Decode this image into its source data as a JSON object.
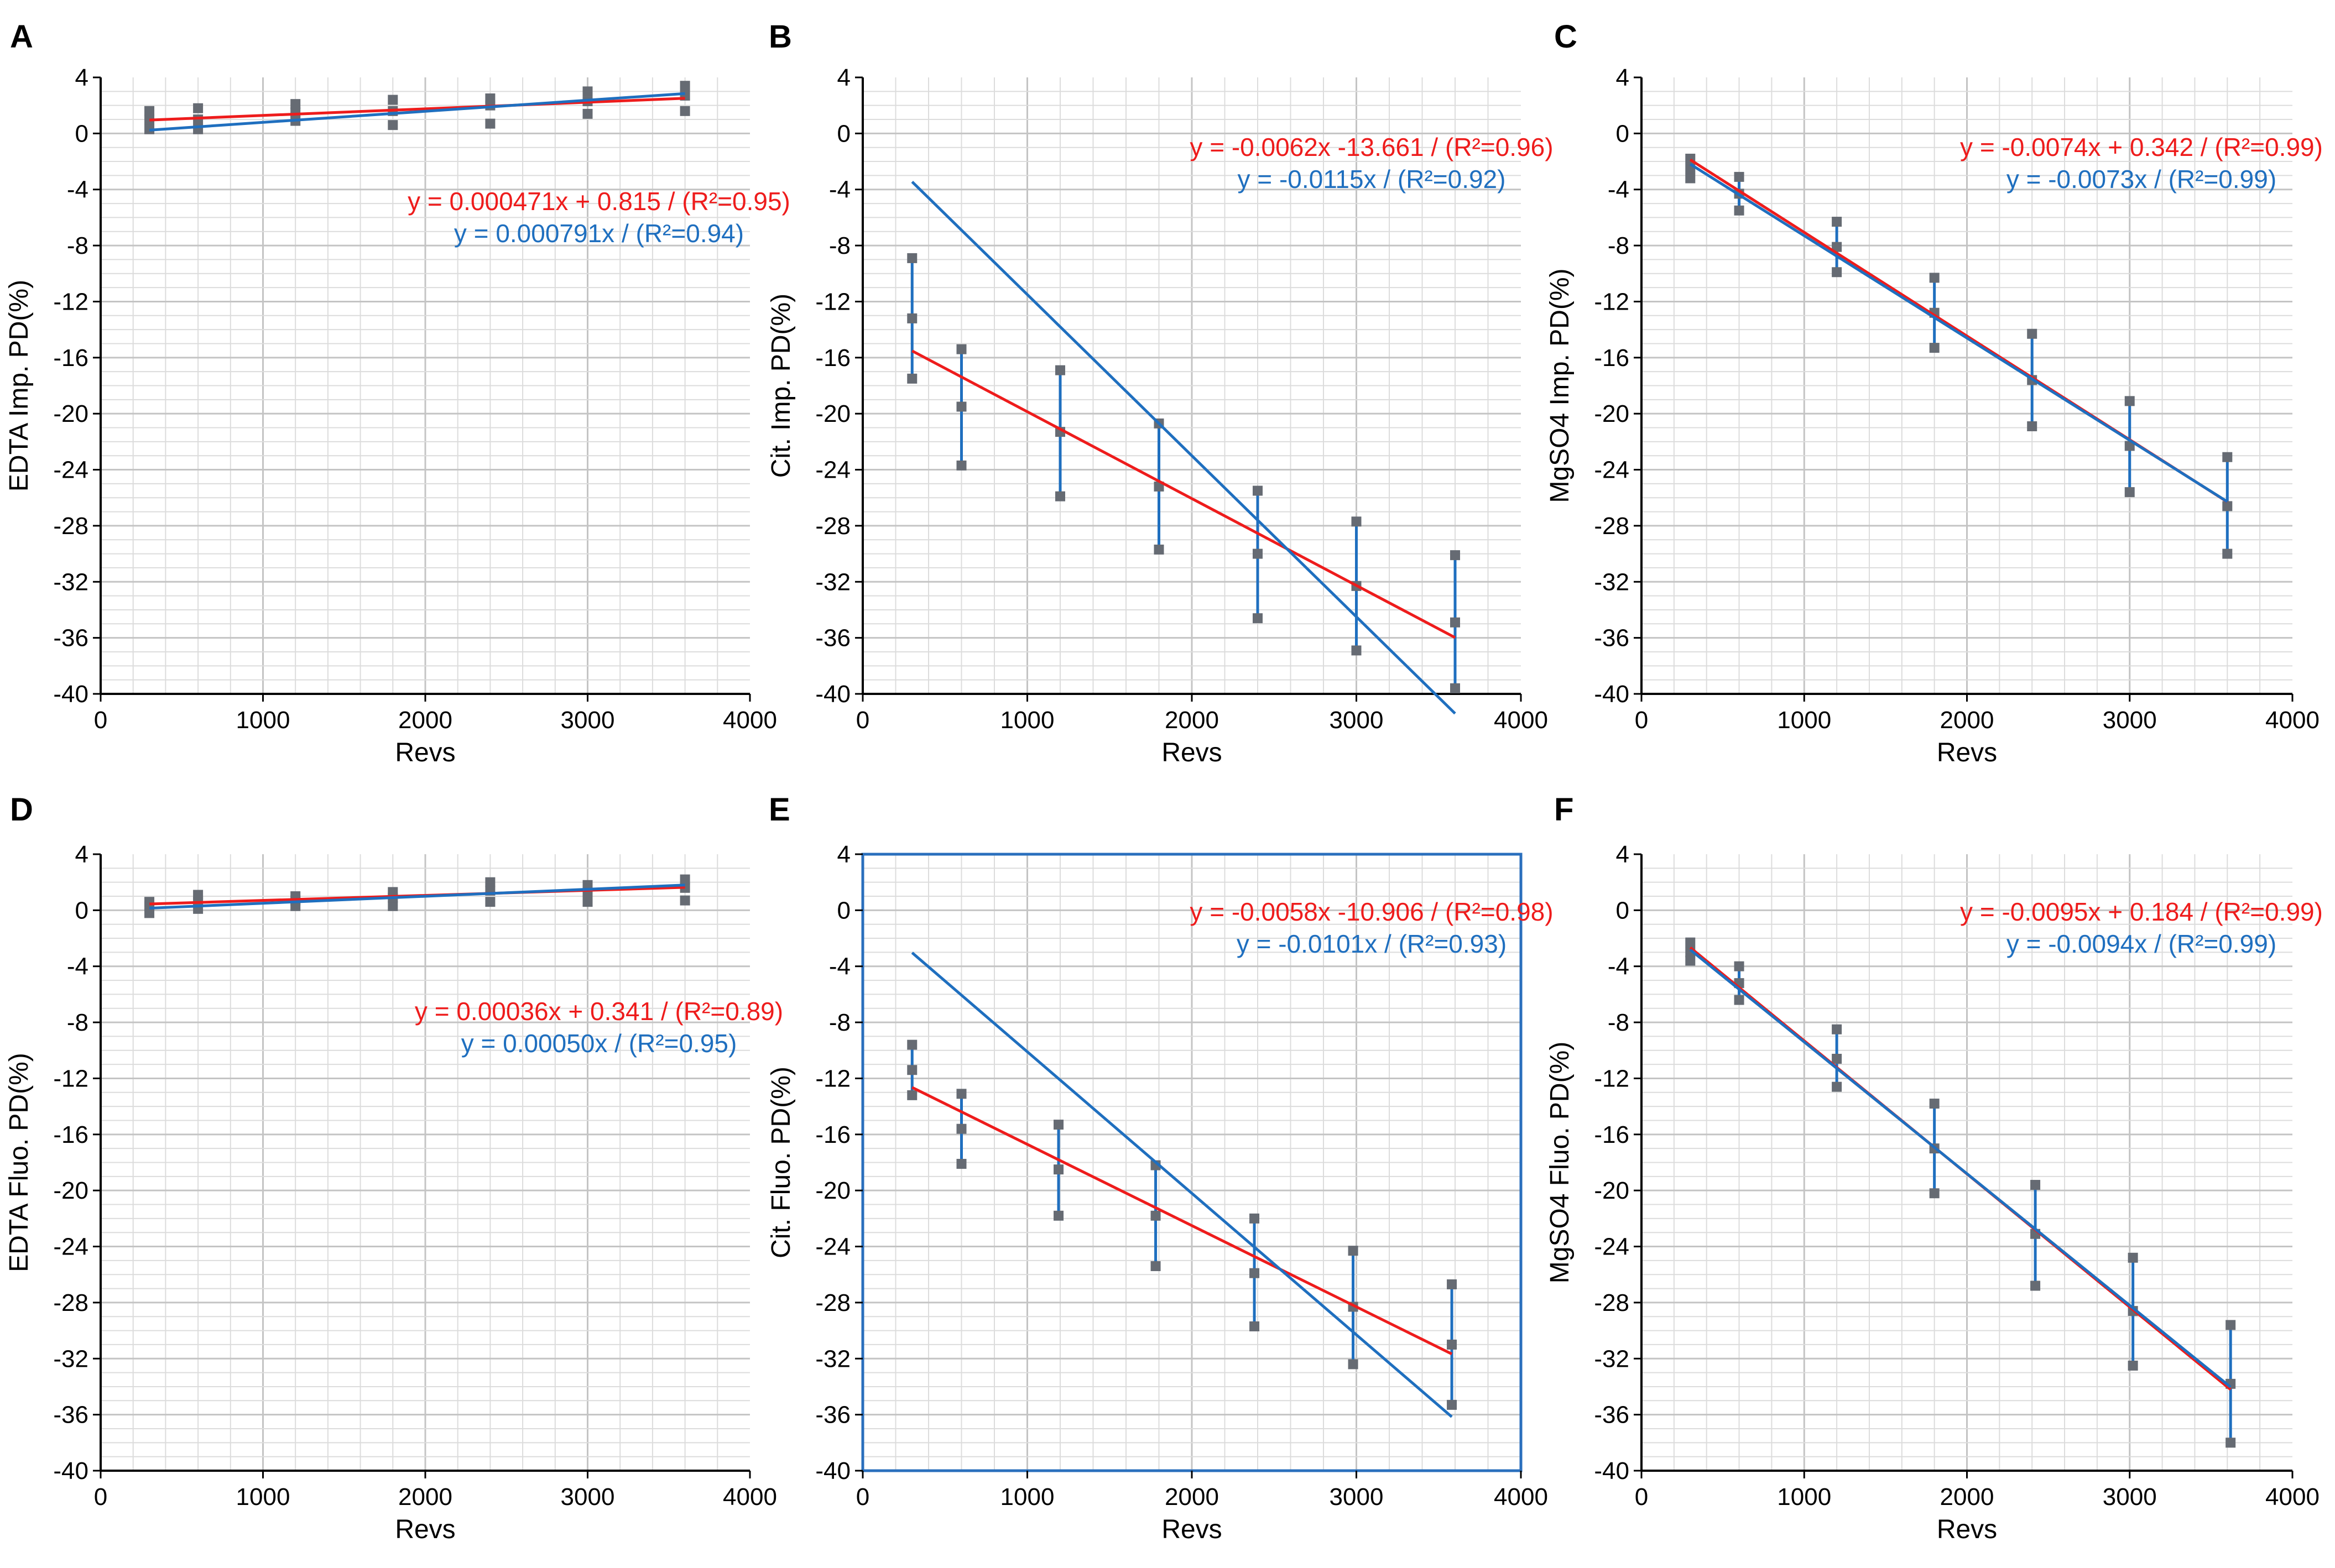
{
  "chart_data": [
    {
      "panel": "A",
      "type": "scatter",
      "xlabel": "Revs",
      "ylabel": "EDTA Imp. PD(%)",
      "xlim": [
        0,
        4000
      ],
      "ylim": [
        -40,
        4
      ],
      "xticks": [
        "0",
        "1000",
        "2000",
        "3000",
        "4000"
      ],
      "yticks": [
        "4",
        "0",
        "-4",
        "-8",
        "-12",
        "-16",
        "-20",
        "-24",
        "-28",
        "-32",
        "-36",
        "-40"
      ],
      "x": [
        300,
        600,
        1200,
        1800,
        2400,
        3000,
        3600
      ],
      "points": [
        [
          0.3,
          1.0,
          1.6
        ],
        [
          0.3,
          1.0,
          1.8
        ],
        [
          0.9,
          1.5,
          2.1
        ],
        [
          0.6,
          1.6,
          2.4
        ],
        [
          0.7,
          2.0,
          2.5
        ],
        [
          1.4,
          2.3,
          3.0
        ],
        [
          1.6,
          2.7,
          3.4
        ]
      ],
      "error_bars": false,
      "fits": [
        {
          "label": "y = 0.000471x + 0.815 / (R²=0.95)",
          "color": "#ee1c1c",
          "slope": 0.000471,
          "intercept": 0.815,
          "x_range": [
            300,
            3600
          ]
        },
        {
          "label": "y = 0.000791x / (R²=0.94)",
          "color": "#1f6fbf",
          "slope": 0.000791,
          "intercept": 0,
          "x_range": [
            300,
            3600
          ]
        }
      ],
      "boxed": false
    },
    {
      "panel": "B",
      "type": "scatter",
      "xlabel": "Revs",
      "ylabel": "Cit. Imp. PD(%)",
      "xlim": [
        0,
        4000
      ],
      "ylim": [
        -40,
        4
      ],
      "xticks": [
        "0",
        "1000",
        "2000",
        "3000",
        "4000"
      ],
      "yticks": [
        "4",
        "0",
        "-4",
        "-8",
        "-12",
        "-16",
        "-20",
        "-24",
        "-28",
        "-32",
        "-36",
        "-40"
      ],
      "x": [
        300,
        600,
        1200,
        1800,
        2400,
        3000,
        3600
      ],
      "points": [
        [
          -17.5,
          -13.2,
          -8.9
        ],
        [
          -23.7,
          -19.5,
          -15.4
        ],
        [
          -25.9,
          -21.3,
          -16.9
        ],
        [
          -29.7,
          -25.2,
          -20.7
        ],
        [
          -34.6,
          -30.0,
          -25.5
        ],
        [
          -36.9,
          -32.3,
          -27.7
        ],
        [
          -39.6,
          -34.9,
          -30.1
        ]
      ],
      "error_bars": true,
      "fits": [
        {
          "label": "y = -0.0062x -13.661 / (R²=0.96)",
          "color": "#ee1c1c",
          "slope": -0.0062,
          "intercept": -13.661,
          "x_range": [
            300,
            3600
          ]
        },
        {
          "label": "y = -0.0115x / (R²=0.92)",
          "color": "#1f6fbf",
          "slope": -0.0115,
          "intercept": 0,
          "x_range": [
            300,
            3600
          ]
        }
      ],
      "boxed": false
    },
    {
      "panel": "C",
      "type": "scatter",
      "xlabel": "Revs",
      "ylabel": "MgSO4 Imp. PD(%)",
      "xlim": [
        0,
        4000
      ],
      "ylim": [
        -40,
        4
      ],
      "xticks": [
        "0",
        "1000",
        "2000",
        "3000",
        "4000"
      ],
      "yticks": [
        "4",
        "0",
        "-4",
        "-8",
        "-12",
        "-16",
        "-20",
        "-24",
        "-28",
        "-32",
        "-36",
        "-40"
      ],
      "x": [
        300,
        600,
        1200,
        1800,
        2400,
        3000,
        3600
      ],
      "points": [
        [
          -3.2,
          -2.5,
          -1.8
        ],
        [
          -5.5,
          -4.3,
          -3.1
        ],
        [
          -9.9,
          -8.1,
          -6.3
        ],
        [
          -15.3,
          -12.8,
          -10.3
        ],
        [
          -20.9,
          -17.6,
          -14.3
        ],
        [
          -25.6,
          -22.3,
          -19.1
        ],
        [
          -30.0,
          -26.6,
          -23.1
        ]
      ],
      "error_bars": true,
      "fits": [
        {
          "label": "y = -0.0074x + 0.342 / (R²=0.99)",
          "color": "#ee1c1c",
          "slope": -0.0074,
          "intercept": 0.342,
          "x_range": [
            300,
            3600
          ]
        },
        {
          "label": "y = -0.0073x / (R²=0.99)",
          "color": "#1f6fbf",
          "slope": -0.0073,
          "intercept": 0,
          "x_range": [
            300,
            3600
          ]
        }
      ],
      "boxed": false
    },
    {
      "panel": "D",
      "type": "scatter",
      "xlabel": "Revs",
      "ylabel": "EDTA Fluo. PD(%)",
      "xlim": [
        0,
        4000
      ],
      "ylim": [
        -40,
        4
      ],
      "xticks": [
        "0",
        "1000",
        "2000",
        "3000",
        "4000"
      ],
      "yticks": [
        "4",
        "0",
        "-4",
        "-8",
        "-12",
        "-16",
        "-20",
        "-24",
        "-28",
        "-32",
        "-36",
        "-40"
      ],
      "x": [
        300,
        600,
        1200,
        1800,
        2400,
        3000,
        3600
      ],
      "points": [
        [
          -0.2,
          0.3,
          0.6
        ],
        [
          0.1,
          0.6,
          1.1
        ],
        [
          0.3,
          0.7,
          1.0
        ],
        [
          0.3,
          0.9,
          1.3
        ],
        [
          0.6,
          1.4,
          2.0
        ],
        [
          0.6,
          1.2,
          1.8
        ],
        [
          0.7,
          1.6,
          2.2
        ]
      ],
      "error_bars": false,
      "fits": [
        {
          "label": "y = 0.00036x + 0.341 / (R²=0.89)",
          "color": "#ee1c1c",
          "slope": 0.00036,
          "intercept": 0.341,
          "x_range": [
            300,
            3600
          ]
        },
        {
          "label": "y = 0.00050x / (R²=0.95)",
          "color": "#1f6fbf",
          "slope": 0.0005,
          "intercept": 0,
          "x_range": [
            300,
            3600
          ]
        }
      ],
      "boxed": false
    },
    {
      "panel": "E",
      "type": "scatter",
      "xlabel": "Revs",
      "ylabel": "Cit. Fluo. PD(%)",
      "xlim": [
        0,
        4000
      ],
      "ylim": [
        -40,
        4
      ],
      "xticks": [
        "0",
        "1000",
        "2000",
        "3000",
        "4000"
      ],
      "yticks": [
        "4",
        "0",
        "-4",
        "-8",
        "-12",
        "-16",
        "-20",
        "-24",
        "-28",
        "-32",
        "-36",
        "-40"
      ],
      "x": [
        300,
        600,
        1190,
        1780,
        2380,
        2980,
        3580
      ],
      "points": [
        [
          -13.2,
          -11.4,
          -9.6
        ],
        [
          -18.1,
          -15.6,
          -13.1
        ],
        [
          -21.8,
          -18.5,
          -15.3
        ],
        [
          -25.4,
          -21.8,
          -18.2
        ],
        [
          -29.7,
          -25.9,
          -22.0
        ],
        [
          -32.4,
          -28.3,
          -24.3
        ],
        [
          -35.3,
          -31.0,
          -26.7
        ]
      ],
      "error_bars": true,
      "fits": [
        {
          "label": "y = -0.0058x -10.906 / (R²=0.98)",
          "color": "#ee1c1c",
          "slope": -0.0058,
          "intercept": -10.906,
          "x_range": [
            300,
            3580
          ]
        },
        {
          "label": "y = -0.0101x / (R²=0.93)",
          "color": "#1f6fbf",
          "slope": -0.0101,
          "intercept": 0,
          "x_range": [
            300,
            3580
          ]
        }
      ],
      "boxed": true
    },
    {
      "panel": "F",
      "type": "scatter",
      "xlabel": "Revs",
      "ylabel": "MgSO4 Fluo. PD(%)",
      "xlim": [
        0,
        4000
      ],
      "ylim": [
        -40,
        4
      ],
      "xticks": [
        "0",
        "1000",
        "2000",
        "3000",
        "4000"
      ],
      "yticks": [
        "4",
        "0",
        "-4",
        "-8",
        "-12",
        "-16",
        "-20",
        "-24",
        "-28",
        "-32",
        "-36",
        "-40"
      ],
      "x": [
        300,
        600,
        1200,
        1800,
        2420,
        3020,
        3620
      ],
      "points": [
        [
          -3.6,
          -3.0,
          -2.3
        ],
        [
          -6.4,
          -5.2,
          -4.0
        ],
        [
          -12.6,
          -10.6,
          -8.5
        ],
        [
          -20.2,
          -17.0,
          -13.8
        ],
        [
          -26.8,
          -23.1,
          -19.6
        ],
        [
          -32.5,
          -28.6,
          -24.8
        ],
        [
          -38.0,
          -33.8,
          -29.6
        ]
      ],
      "error_bars": true,
      "fits": [
        {
          "label": "y = -0.0095x + 0.184 / (R²=0.99)",
          "color": "#ee1c1c",
          "slope": -0.0095,
          "intercept": 0.184,
          "x_range": [
            300,
            3620
          ]
        },
        {
          "label": "y = -0.0094x / (R²=0.99)",
          "color": "#1f6fbf",
          "slope": -0.0094,
          "intercept": 0,
          "x_range": [
            300,
            3620
          ]
        }
      ],
      "boxed": false
    }
  ]
}
